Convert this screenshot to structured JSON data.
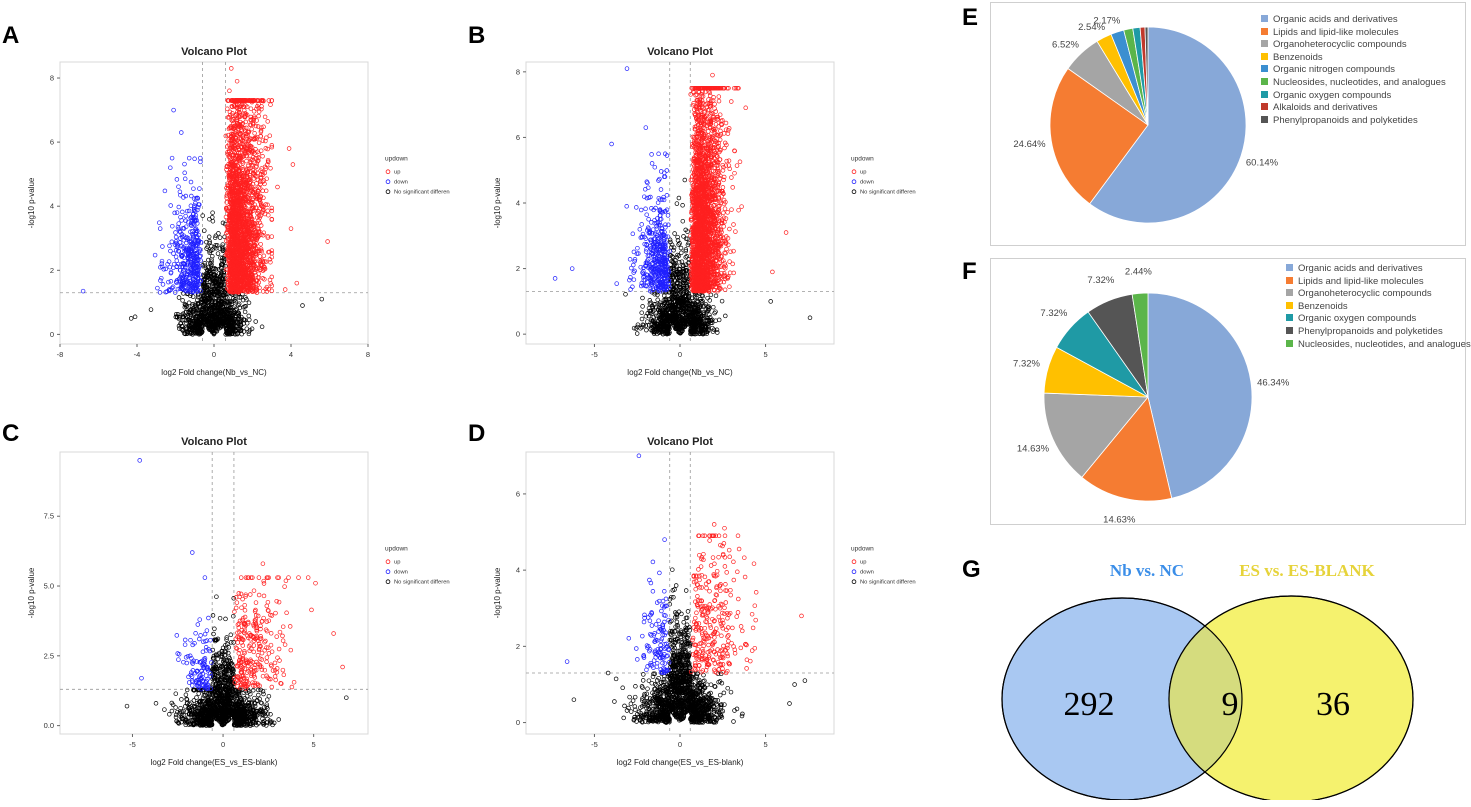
{
  "panel_labels": {
    "A": "A",
    "B": "B",
    "C": "C",
    "D": "D",
    "E": "E",
    "F": "F",
    "G": "G"
  },
  "colors": {
    "up": "#ff2020",
    "down": "#2020ff",
    "nsd": "#000000"
  },
  "chart_data": [
    {
      "id": "A",
      "type": "scatter",
      "title": "Volcano Plot",
      "xlabel": "log2 Fold change(Nb_vs_NC)",
      "ylabel": "-log10 p-value",
      "xlim": [
        -8,
        8
      ],
      "ylim": [
        -0.3,
        8.5
      ],
      "xticks": [
        -8,
        -4,
        0,
        4,
        8
      ],
      "yticks": [
        0,
        2,
        4,
        6,
        8
      ],
      "fc_thresholds": [
        -0.6,
        0.6
      ],
      "p_threshold": 1.3,
      "legend_title": "updown",
      "legend": [
        "up",
        "down",
        "No significant difference"
      ],
      "cloud": {
        "xmin": -4,
        "xmax": 3,
        "up": {
          "n": 2300,
          "spread": 1.0,
          "center": 1.6,
          "ymax": 6.8
        },
        "down": {
          "n": 420,
          "spread": 0.75,
          "center": -1.4,
          "ymax": 5.0
        },
        "nsd": {
          "n": 1100,
          "xspread": 1.3
        }
      },
      "outliers": [
        [
          -6.8,
          1.35
        ],
        [
          -2.1,
          7.0
        ],
        [
          -1.7,
          6.3
        ],
        [
          0.8,
          7.6
        ],
        [
          0.9,
          8.3
        ],
        [
          1.2,
          7.9
        ],
        [
          2.9,
          6.2
        ],
        [
          3.0,
          5.9
        ],
        [
          3.9,
          5.8
        ],
        [
          4.1,
          5.3
        ],
        [
          3.3,
          4.6
        ],
        [
          4.0,
          3.3
        ],
        [
          5.9,
          2.9
        ],
        [
          4.3,
          1.6
        ],
        [
          4.6,
          0.9
        ],
        [
          5.6,
          1.1
        ],
        [
          3.7,
          1.4
        ],
        [
          -4.3,
          0.5
        ],
        [
          -4.1,
          0.55
        ]
      ]
    },
    {
      "id": "B",
      "type": "scatter",
      "title": "Volcano Plot",
      "xlabel": "log2 Fold change(Nb_vs_NC)",
      "ylabel": "-log10 p-value",
      "xlim": [
        -9,
        9
      ],
      "ylim": [
        -0.3,
        8.3
      ],
      "xticks": [
        -5,
        0,
        5
      ],
      "yticks": [
        0,
        2,
        4,
        6,
        8
      ],
      "fc_thresholds": [
        -0.6,
        0.6
      ],
      "p_threshold": 1.3,
      "legend_title": "updown",
      "legend": [
        "up",
        "down",
        "No significant difference"
      ],
      "cloud": {
        "xmin": -5,
        "xmax": 4,
        "up": {
          "n": 2300,
          "spread": 1.0,
          "center": 1.6,
          "ymax": 7.0
        },
        "down": {
          "n": 420,
          "spread": 0.8,
          "center": -1.6,
          "ymax": 5.0
        },
        "nsd": {
          "n": 1100,
          "xspread": 1.5
        }
      },
      "outliers": [
        [
          -3.1,
          8.1
        ],
        [
          -2.0,
          6.3
        ],
        [
          -4.0,
          5.8
        ],
        [
          -7.3,
          1.7
        ],
        [
          -6.3,
          2.0
        ],
        [
          6.2,
          3.1
        ],
        [
          5.4,
          1.9
        ],
        [
          7.6,
          0.5
        ],
        [
          5.3,
          1.0
        ],
        [
          1.9,
          7.9
        ],
        [
          2.4,
          6.5
        ]
      ]
    },
    {
      "id": "C",
      "type": "scatter",
      "title": "Volcano Plot",
      "xlabel": "log2 Fold change(ES_vs_ES-blank)",
      "ylabel": "-log10 p-value",
      "xlim": [
        -9,
        8
      ],
      "ylim": [
        -0.3,
        9.8
      ],
      "xticks": [
        -5,
        0,
        5
      ],
      "yticks": [
        0.0,
        2.5,
        5.0,
        7.5
      ],
      "fc_thresholds": [
        -0.6,
        0.6
      ],
      "p_threshold": 1.3,
      "legend_title": "updown",
      "legend": [
        "up",
        "down",
        "No significant difference"
      ],
      "cloud": {
        "xmin": -4,
        "xmax": 6.5,
        "up": {
          "n": 280,
          "spread": 1.6,
          "center": 2.3,
          "ymax": 4.8
        },
        "down": {
          "n": 110,
          "spread": 0.6,
          "center": -1.2,
          "ymax": 4.0
        },
        "nsd": {
          "n": 1400,
          "xspread": 1.7
        }
      },
      "outliers": [
        [
          -4.6,
          9.5
        ],
        [
          -1.7,
          6.2
        ],
        [
          -1.0,
          5.3
        ],
        [
          2.2,
          5.8
        ],
        [
          4.7,
          5.3
        ],
        [
          5.1,
          5.1
        ],
        [
          6.1,
          3.3
        ],
        [
          6.6,
          2.1
        ],
        [
          -4.5,
          1.7
        ],
        [
          6.8,
          1.0
        ],
        [
          -3.7,
          0.8
        ],
        [
          -5.3,
          0.7
        ]
      ]
    },
    {
      "id": "D",
      "type": "scatter",
      "title": "Volcano Plot",
      "xlabel": "log2 Fold change(ES_vs_ES-blank)",
      "ylabel": "-log10 p-value",
      "xlim": [
        -9,
        9
      ],
      "ylim": [
        -0.3,
        7.1
      ],
      "xticks": [
        -5,
        0,
        5
      ],
      "yticks": [
        0,
        2,
        4,
        6
      ],
      "fc_thresholds": [
        -0.6,
        0.6
      ],
      "p_threshold": 1.3,
      "legend_title": "updown",
      "legend": [
        "up",
        "down",
        "No significant difference"
      ],
      "cloud": {
        "xmin": -4.5,
        "xmax": 7,
        "up": {
          "n": 300,
          "spread": 1.7,
          "center": 2.5,
          "ymax": 4.4
        },
        "down": {
          "n": 120,
          "spread": 0.7,
          "center": -1.3,
          "ymax": 3.8
        },
        "nsd": {
          "n": 1500,
          "xspread": 1.8
        }
      },
      "outliers": [
        [
          -2.4,
          7.0
        ],
        [
          -0.9,
          4.8
        ],
        [
          2.0,
          5.2
        ],
        [
          2.6,
          5.1
        ],
        [
          7.1,
          2.8
        ],
        [
          -6.6,
          1.6
        ],
        [
          -4.2,
          1.3
        ],
        [
          6.7,
          1.0
        ],
        [
          7.3,
          1.1
        ],
        [
          -6.2,
          0.6
        ],
        [
          6.4,
          0.5
        ]
      ]
    },
    {
      "id": "E",
      "type": "pie",
      "slices": [
        {
          "name": "Organic acids and derivatives",
          "value": 60.14,
          "label": "60.14%",
          "color": "#87a8d8"
        },
        {
          "name": "Lipids and lipid-like molecules",
          "value": 24.64,
          "label": "24.64%",
          "color": "#f57c32"
        },
        {
          "name": "Organoheterocyclic compounds",
          "value": 6.52,
          "label": "6.52%",
          "color": "#a5a5a5"
        },
        {
          "name": "Benzenoids",
          "value": 2.54,
          "label": "2.54%",
          "color": "#ffc000"
        },
        {
          "name": "Organic nitrogen compounds",
          "value": 2.17,
          "label": "2.17%",
          "color": "#3b8fd0"
        },
        {
          "name": "Nucleosides, nucleotides, and analogues",
          "value": 1.5,
          "label": "",
          "color": "#5bb54a"
        },
        {
          "name": "Organic oxygen compounds",
          "value": 1.2,
          "label": "",
          "color": "#1f9aa5"
        },
        {
          "name": "Alkaloids and derivatives",
          "value": 0.8,
          "label": "",
          "color": "#c0392b"
        },
        {
          "name": "Phenylpropanoids and polyketides",
          "value": 0.49,
          "label": "",
          "color": "#555555"
        }
      ]
    },
    {
      "id": "F",
      "type": "pie",
      "slices": [
        {
          "name": "Organic acids and derivatives",
          "value": 46.34,
          "label": "46.34%",
          "color": "#87a8d8"
        },
        {
          "name": "Lipids and lipid-like molecules",
          "value": 14.63,
          "label": "14.63%",
          "color": "#f57c32"
        },
        {
          "name": "Organoheterocyclic compounds",
          "value": 14.63,
          "label": "14.63%",
          "color": "#a5a5a5"
        },
        {
          "name": "Benzenoids",
          "value": 7.32,
          "label": "7.32%",
          "color": "#ffc000"
        },
        {
          "name": "Organic oxygen compounds",
          "value": 7.32,
          "label": "7.32%",
          "color": "#1f9aa5"
        },
        {
          "name": "Phenylpropanoids and polyketides",
          "value": 7.32,
          "label": "7.32%",
          "color": "#555555"
        },
        {
          "name": "Nucleosides, nucleotides, and analogues",
          "value": 2.44,
          "label": "2.44%",
          "color": "#5bb54a"
        }
      ]
    }
  ],
  "venn": {
    "left_title": "Nb vs. NC",
    "right_title": "ES vs. ES-BLANK",
    "left_only": "292",
    "overlap": "9",
    "right_only": "36",
    "left_color": "#a9c8f2",
    "right_color": "#f5f26e",
    "overlap_color": "#d5dc7e",
    "left_title_color": "#3b8ee8",
    "right_title_color": "#e6d33a"
  }
}
